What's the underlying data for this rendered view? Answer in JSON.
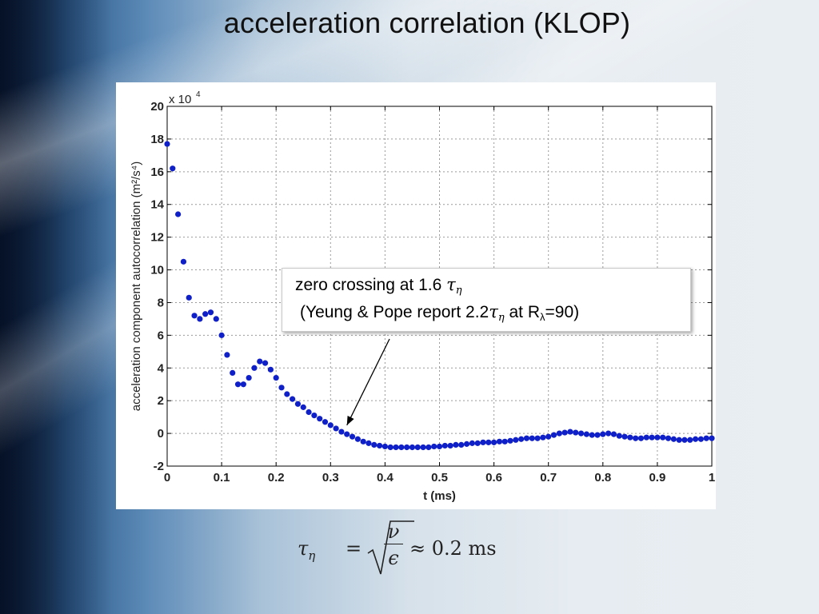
{
  "slide": {
    "title": "acceleration correlation (KLOP)"
  },
  "chart_data": {
    "type": "scatter",
    "title": "",
    "xlabel": "t (ms)",
    "ylabel": "acceleration component autocorrelation (m²/s⁴)",
    "y_multiplier": "x 10",
    "y_multiplier_exponent": "4",
    "xlim": [
      0,
      1
    ],
    "ylim": [
      -2,
      20
    ],
    "y_scale_factor": 10000,
    "x_ticks": [
      "0",
      "0.1",
      "0.2",
      "0.3",
      "0.4",
      "0.5",
      "0.6",
      "0.7",
      "0.8",
      "0.9",
      "1"
    ],
    "y_ticks": [
      "-2",
      "0",
      "2",
      "4",
      "6",
      "8",
      "10",
      "12",
      "14",
      "16",
      "18",
      "20"
    ],
    "grid": true,
    "marker_color": "#1020c8",
    "series": [
      {
        "x": [
          0.0,
          0.01,
          0.02,
          0.03,
          0.04,
          0.05,
          0.06,
          0.07,
          0.08,
          0.09,
          0.1,
          0.11,
          0.12,
          0.13,
          0.14,
          0.15,
          0.16,
          0.17,
          0.18,
          0.19,
          0.2,
          0.21,
          0.22,
          0.23,
          0.24,
          0.25,
          0.26,
          0.27,
          0.28,
          0.29,
          0.3,
          0.31,
          0.32,
          0.33,
          0.34,
          0.35,
          0.36,
          0.37,
          0.38,
          0.39,
          0.4,
          0.41,
          0.42,
          0.43,
          0.44,
          0.45,
          0.46,
          0.47,
          0.48,
          0.49,
          0.5,
          0.51,
          0.52,
          0.53,
          0.54,
          0.55,
          0.56,
          0.57,
          0.58,
          0.59,
          0.6,
          0.61,
          0.62,
          0.63,
          0.64,
          0.65,
          0.66,
          0.67,
          0.68,
          0.69,
          0.7,
          0.71,
          0.72,
          0.73,
          0.74,
          0.75,
          0.76,
          0.77,
          0.78,
          0.79,
          0.8,
          0.81,
          0.82,
          0.83,
          0.84,
          0.85,
          0.86,
          0.87,
          0.88,
          0.89,
          0.9,
          0.91,
          0.92,
          0.93,
          0.94,
          0.95,
          0.96,
          0.97,
          0.98,
          0.99,
          1.0
        ],
        "y": [
          17.7,
          16.2,
          13.4,
          10.5,
          8.3,
          7.2,
          7.0,
          7.3,
          7.4,
          7.0,
          6.0,
          4.8,
          3.7,
          3.0,
          3.0,
          3.4,
          4.0,
          4.4,
          4.3,
          3.9,
          3.4,
          2.8,
          2.4,
          2.1,
          1.8,
          1.6,
          1.3,
          1.1,
          0.9,
          0.7,
          0.5,
          0.3,
          0.1,
          -0.05,
          -0.2,
          -0.35,
          -0.5,
          -0.6,
          -0.7,
          -0.75,
          -0.8,
          -0.85,
          -0.85,
          -0.85,
          -0.85,
          -0.85,
          -0.85,
          -0.85,
          -0.85,
          -0.8,
          -0.8,
          -0.75,
          -0.75,
          -0.7,
          -0.7,
          -0.65,
          -0.6,
          -0.6,
          -0.55,
          -0.55,
          -0.55,
          -0.5,
          -0.5,
          -0.45,
          -0.4,
          -0.35,
          -0.3,
          -0.3,
          -0.3,
          -0.25,
          -0.2,
          -0.1,
          0.0,
          0.05,
          0.1,
          0.05,
          0.0,
          -0.05,
          -0.1,
          -0.1,
          -0.05,
          0.0,
          -0.05,
          -0.15,
          -0.2,
          -0.25,
          -0.3,
          -0.3,
          -0.25,
          -0.25,
          -0.25,
          -0.25,
          -0.3,
          -0.35,
          -0.4,
          -0.4,
          -0.4,
          -0.35,
          -0.35,
          -0.3,
          -0.3
        ]
      }
    ],
    "annotation": {
      "line1_text": "zero crossing at 1.6",
      "line1_symbol": "τ",
      "line1_sub": "η",
      "line2_open": "(Yeung & Pope report 2.2",
      "line2_symbol": "τ",
      "line2_sub": "η",
      "line2_mid": " at R",
      "line2_sub_lambda": "λ",
      "line2_close": "=90)",
      "arrow_target_x": 0.33,
      "arrow_target_y": 0.5
    }
  },
  "formula": {
    "lhs_symbol": "τ",
    "lhs_sub": "η",
    "equals": "=",
    "radical": "√",
    "numerator": "ν",
    "denominator": "ϵ",
    "rhs": "≈ 0.2 ms"
  }
}
